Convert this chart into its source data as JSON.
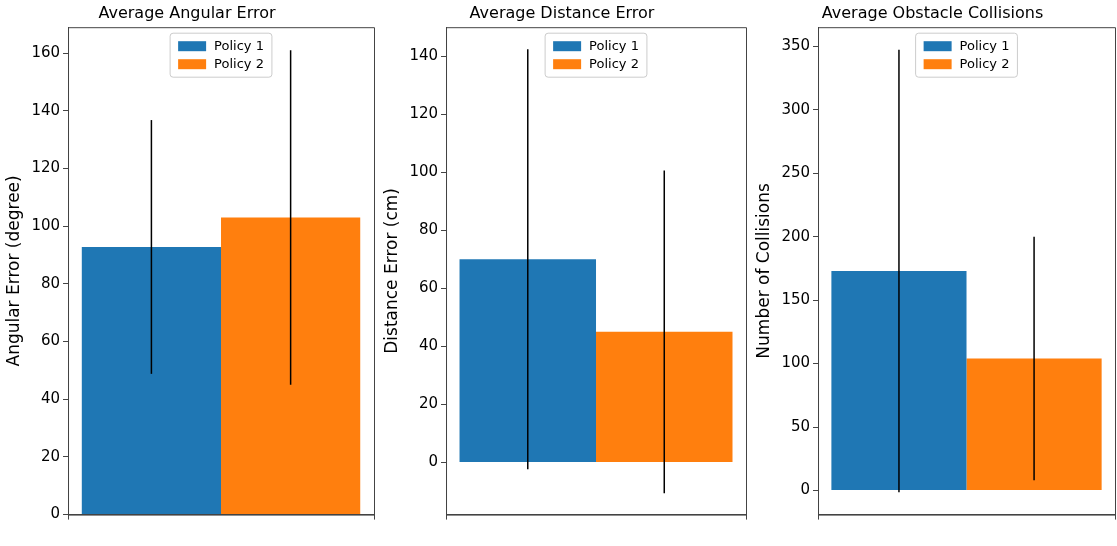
{
  "chart_data": [
    {
      "type": "bar",
      "title": "Average Angular Error",
      "ylabel": "Angular Error (degree)",
      "categories": [
        null
      ],
      "legend": "top",
      "ylim": [
        0,
        169
      ],
      "yticks": [
        0,
        20,
        40,
        60,
        80,
        100,
        120,
        140,
        160
      ],
      "series": [
        {
          "name": "Policy 1",
          "color": "#1f77b4",
          "values": [
            92.8
          ],
          "errors": [
            44
          ]
        },
        {
          "name": "Policy 2",
          "color": "#ff7f0e",
          "values": [
            103
          ],
          "errors": [
            58
          ]
        }
      ]
    },
    {
      "type": "bar",
      "title": "Average Distance Error",
      "ylabel": "Distance Error (cm)",
      "categories": [
        null
      ],
      "legend": "top",
      "ylim": [
        -18,
        150
      ],
      "yticks": [
        0,
        20,
        40,
        60,
        80,
        100,
        120,
        140
      ],
      "series": [
        {
          "name": "Policy 1",
          "color": "#1f77b4",
          "values": [
            70
          ],
          "errors": [
            72.4
          ]
        },
        {
          "name": "Policy 2",
          "color": "#ff7f0e",
          "values": [
            45
          ],
          "errors": [
            55.6
          ]
        }
      ]
    },
    {
      "type": "bar",
      "title": "Average Obstacle Collisions",
      "ylabel": "Number of Collisions",
      "categories": [
        null
      ],
      "legend": "top",
      "ylim": [
        -19,
        365
      ],
      "yticks": [
        0,
        50,
        100,
        150,
        200,
        250,
        300,
        350
      ],
      "series": [
        {
          "name": "Policy 1",
          "color": "#1f77b4",
          "values": [
            173
          ],
          "errors": [
            174.3
          ]
        },
        {
          "name": "Policy 2",
          "color": "#ff7f0e",
          "values": [
            104
          ],
          "errors": [
            96
          ]
        }
      ]
    }
  ]
}
